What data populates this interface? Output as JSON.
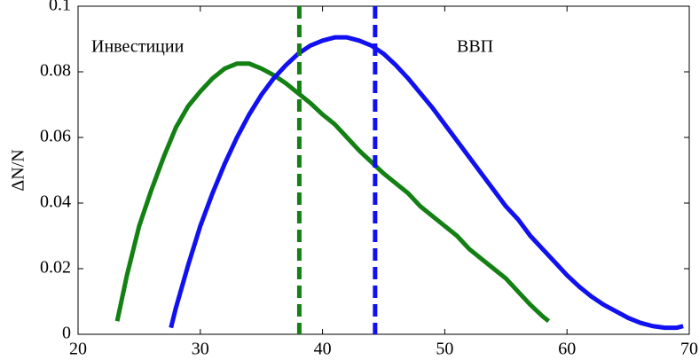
{
  "chart_data": {
    "type": "line",
    "ylabel": "ΔN/N",
    "xlim": [
      20,
      70
    ],
    "xticks": [
      20,
      30,
      40,
      50,
      60,
      70
    ],
    "ylim": [
      0,
      0.1
    ],
    "yticks": [
      0,
      0.02,
      0.04,
      0.06,
      0.08,
      0.1
    ],
    "series": [
      {
        "color": "#138013",
        "x": [
          23.2,
          24,
          25,
          26,
          27,
          28,
          29,
          30,
          31,
          32,
          33,
          34,
          35,
          36,
          37,
          38,
          39,
          40,
          41,
          42,
          43,
          44,
          45,
          46,
          47,
          48,
          49,
          50,
          51,
          52,
          53,
          54,
          55,
          56,
          57,
          58,
          58.5
        ],
        "values": [
          0.004,
          0.018,
          0.033,
          0.044,
          0.054,
          0.063,
          0.0695,
          0.074,
          0.078,
          0.081,
          0.0825,
          0.0825,
          0.081,
          0.079,
          0.0765,
          0.0735,
          0.0705,
          0.067,
          0.064,
          0.06,
          0.056,
          0.0525,
          0.049,
          0.046,
          0.043,
          0.039,
          0.036,
          0.033,
          0.03,
          0.026,
          0.023,
          0.02,
          0.017,
          0.013,
          0.009,
          0.0055,
          0.004
        ]
      },
      {
        "color": "#1010f0",
        "x": [
          27.6,
          28,
          29,
          30,
          31,
          32,
          33,
          34,
          35,
          36,
          37,
          38,
          39,
          40,
          41,
          42,
          43,
          44,
          45,
          46,
          47,
          48,
          49,
          50,
          51,
          52,
          53,
          54,
          55,
          56,
          57,
          58,
          59,
          60,
          61,
          62,
          63,
          64,
          65,
          66,
          67,
          68,
          69,
          69.5
        ],
        "values": [
          0.002,
          0.008,
          0.021,
          0.033,
          0.043,
          0.052,
          0.06,
          0.067,
          0.073,
          0.078,
          0.082,
          0.0855,
          0.088,
          0.0895,
          0.0905,
          0.0905,
          0.0895,
          0.088,
          0.0855,
          0.082,
          0.078,
          0.0735,
          0.069,
          0.064,
          0.059,
          0.054,
          0.049,
          0.044,
          0.039,
          0.035,
          0.03,
          0.026,
          0.022,
          0.018,
          0.0145,
          0.0115,
          0.009,
          0.007,
          0.005,
          0.0035,
          0.0025,
          0.002,
          0.002,
          0.0025
        ]
      }
    ],
    "vlines": [
      {
        "x": 38.1,
        "color": "#138013"
      },
      {
        "x": 44.3,
        "color": "#1010f0"
      }
    ],
    "annotations": [
      "Инвестиции",
      "ВВП"
    ]
  }
}
